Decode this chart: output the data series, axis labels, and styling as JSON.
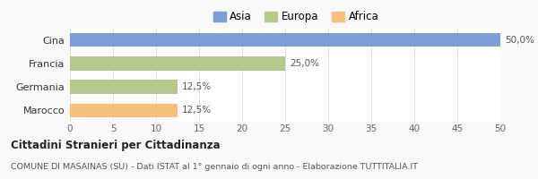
{
  "categories": [
    "Marocco",
    "Germania",
    "Francia",
    "Cina"
  ],
  "values": [
    12.5,
    12.5,
    25.0,
    50.0
  ],
  "colors": [
    "#f5c07a",
    "#b5c98e",
    "#b5c98e",
    "#7b9fd4"
  ],
  "bar_labels": [
    "12,5%",
    "12,5%",
    "25,0%",
    "50,0%"
  ],
  "xlim": [
    0,
    50
  ],
  "xticks": [
    0,
    5,
    10,
    15,
    20,
    25,
    30,
    35,
    40,
    45,
    50
  ],
  "legend_entries": [
    {
      "label": "Asia",
      "color": "#7b9fd4"
    },
    {
      "label": "Europa",
      "color": "#b5c98e"
    },
    {
      "label": "Africa",
      "color": "#f5c07a"
    }
  ],
  "title": "Cittadini Stranieri per Cittadinanza",
  "subtitle": "COMUNE DI MASAINAS (SU) - Dati ISTAT al 1° gennaio di ogni anno - Elaborazione TUTTITALIA.IT",
  "background_color": "#f9f9f9",
  "bar_background": "#ffffff",
  "grid_color": "#e0e0e0"
}
